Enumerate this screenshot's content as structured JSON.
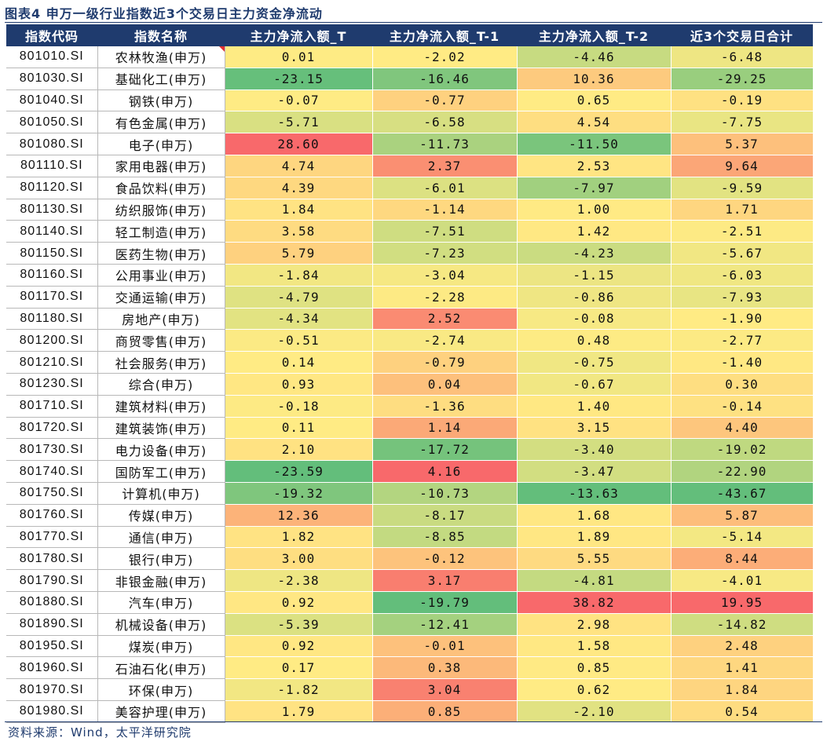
{
  "title": "图表4 申万一级行业指数近3个交易日主力资金净流动",
  "columns": [
    "指数代码",
    "指数名称",
    "主力净流入额_T",
    "主力净流入额_T-1",
    "主力净流入额_T-2",
    "近3个交易日合计"
  ],
  "rows": [
    {
      "code": "801010.SI",
      "name": "农林牧渔(申万)",
      "v": [
        "0.01",
        "-2.02",
        "-4.46",
        "-6.48"
      ]
    },
    {
      "code": "801030.SI",
      "name": "基础化工(申万)",
      "v": [
        "-23.15",
        "-16.46",
        "10.36",
        "-29.25"
      ]
    },
    {
      "code": "801040.SI",
      "name": "钢铁(申万)",
      "v": [
        "-0.07",
        "-0.77",
        "0.65",
        "-0.19"
      ]
    },
    {
      "code": "801050.SI",
      "name": "有色金属(申万)",
      "v": [
        "-5.71",
        "-6.58",
        "4.54",
        "-7.75"
      ]
    },
    {
      "code": "801080.SI",
      "name": "电子(申万)",
      "v": [
        "28.60",
        "-11.73",
        "-11.50",
        "5.37"
      ]
    },
    {
      "code": "801110.SI",
      "name": "家用电器(申万)",
      "v": [
        "4.74",
        "2.37",
        "2.53",
        "9.64"
      ]
    },
    {
      "code": "801120.SI",
      "name": "食品饮料(申万)",
      "v": [
        "4.39",
        "-6.01",
        "-7.97",
        "-9.59"
      ]
    },
    {
      "code": "801130.SI",
      "name": "纺织服饰(申万)",
      "v": [
        "1.84",
        "-1.14",
        "1.00",
        "1.71"
      ]
    },
    {
      "code": "801140.SI",
      "name": "轻工制造(申万)",
      "v": [
        "3.58",
        "-7.51",
        "1.42",
        "-2.51"
      ]
    },
    {
      "code": "801150.SI",
      "name": "医药生物(申万)",
      "v": [
        "5.79",
        "-7.23",
        "-4.23",
        "-5.67"
      ]
    },
    {
      "code": "801160.SI",
      "name": "公用事业(申万)",
      "v": [
        "-1.84",
        "-3.04",
        "-1.15",
        "-6.03"
      ]
    },
    {
      "code": "801170.SI",
      "name": "交通运输(申万)",
      "v": [
        "-4.79",
        "-2.28",
        "-0.86",
        "-7.93"
      ]
    },
    {
      "code": "801180.SI",
      "name": "房地产(申万)",
      "v": [
        "-4.34",
        "2.52",
        "-0.08",
        "-1.90"
      ]
    },
    {
      "code": "801200.SI",
      "name": "商贸零售(申万)",
      "v": [
        "-0.51",
        "-2.74",
        "0.48",
        "-2.77"
      ]
    },
    {
      "code": "801210.SI",
      "name": "社会服务(申万)",
      "v": [
        "0.14",
        "-0.79",
        "-0.75",
        "-1.40"
      ]
    },
    {
      "code": "801230.SI",
      "name": "综合(申万)",
      "v": [
        "0.93",
        "0.04",
        "-0.67",
        "0.30"
      ]
    },
    {
      "code": "801710.SI",
      "name": "建筑材料(申万)",
      "v": [
        "-0.18",
        "-1.36",
        "1.40",
        "-0.14"
      ]
    },
    {
      "code": "801720.SI",
      "name": "建筑装饰(申万)",
      "v": [
        "0.11",
        "1.14",
        "3.15",
        "4.40"
      ]
    },
    {
      "code": "801730.SI",
      "name": "电力设备(申万)",
      "v": [
        "2.10",
        "-17.72",
        "-3.40",
        "-19.02"
      ]
    },
    {
      "code": "801740.SI",
      "name": "国防军工(申万)",
      "v": [
        "-23.59",
        "4.16",
        "-3.47",
        "-22.90"
      ]
    },
    {
      "code": "801750.SI",
      "name": "计算机(申万)",
      "v": [
        "-19.32",
        "-10.73",
        "-13.63",
        "-43.67"
      ]
    },
    {
      "code": "801760.SI",
      "name": "传媒(申万)",
      "v": [
        "12.36",
        "-8.17",
        "1.68",
        "5.87"
      ]
    },
    {
      "code": "801770.SI",
      "name": "通信(申万)",
      "v": [
        "1.82",
        "-8.85",
        "1.89",
        "-5.14"
      ]
    },
    {
      "code": "801780.SI",
      "name": "银行(申万)",
      "v": [
        "3.00",
        "-0.12",
        "5.55",
        "8.44"
      ]
    },
    {
      "code": "801790.SI",
      "name": "非银金融(申万)",
      "v": [
        "-2.38",
        "3.17",
        "-4.81",
        "-4.01"
      ]
    },
    {
      "code": "801880.SI",
      "name": "汽车(申万)",
      "v": [
        "0.92",
        "-19.79",
        "38.82",
        "19.95"
      ]
    },
    {
      "code": "801890.SI",
      "name": "机械设备(申万)",
      "v": [
        "-5.39",
        "-12.41",
        "2.98",
        "-14.82"
      ]
    },
    {
      "code": "801950.SI",
      "name": "煤炭(申万)",
      "v": [
        "0.92",
        "-0.01",
        "1.58",
        "2.48"
      ]
    },
    {
      "code": "801960.SI",
      "name": "石油石化(申万)",
      "v": [
        "0.17",
        "0.38",
        "0.85",
        "1.41"
      ]
    },
    {
      "code": "801970.SI",
      "name": "环保(申万)",
      "v": [
        "-1.82",
        "3.04",
        "0.62",
        "1.84"
      ]
    },
    {
      "code": "801980.SI",
      "name": "美容护理(申万)",
      "v": [
        "1.79",
        "0.85",
        "-2.10",
        "0.54"
      ]
    }
  ],
  "source": "资料来源：Wind，太平洋研究院"
}
